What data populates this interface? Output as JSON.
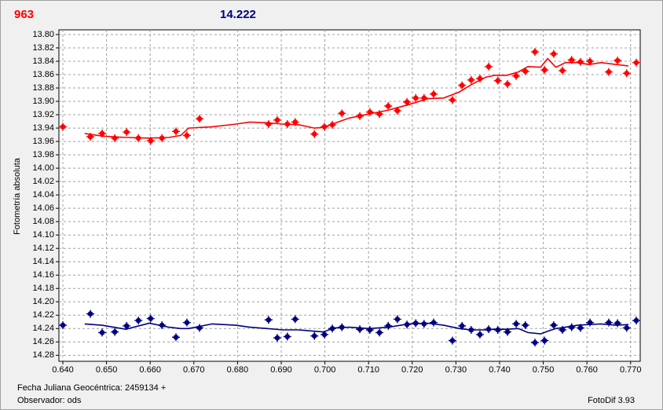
{
  "chart_data": {
    "type": "scatter",
    "y_label": "Fotometría absoluta",
    "footer_left_1": "Fecha Juliana Geocéntrica: 2459134 +",
    "footer_left_2": "Observador: ods",
    "footer_right": "FotoDif 3.93",
    "grid": true,
    "xlim": [
      0.6391,
      0.7722
    ],
    "ylim": [
      14.289,
      13.793
    ],
    "xticks": [
      {
        "value": 0.64,
        "label": "0.640"
      },
      {
        "value": 0.65,
        "label": "0.650"
      },
      {
        "value": 0.66,
        "label": "0.660"
      },
      {
        "value": 0.67,
        "label": "0.670"
      },
      {
        "value": 0.68,
        "label": "0.680"
      },
      {
        "value": 0.69,
        "label": "0.690"
      },
      {
        "value": 0.7,
        "label": "0.700"
      },
      {
        "value": 0.71,
        "label": "0.710"
      },
      {
        "value": 0.72,
        "label": "0.720"
      },
      {
        "value": 0.73,
        "label": "0.730"
      },
      {
        "value": 0.74,
        "label": "0.740"
      },
      {
        "value": 0.75,
        "label": "0.750"
      },
      {
        "value": 0.76,
        "label": "0.760"
      },
      {
        "value": 0.77,
        "label": "0.770"
      }
    ],
    "yticks": [
      {
        "value": 13.8,
        "label": "13.80"
      },
      {
        "value": 13.82,
        "label": "13.82"
      },
      {
        "value": 13.84,
        "label": "13.84"
      },
      {
        "value": 13.86,
        "label": "13.86"
      },
      {
        "value": 13.88,
        "label": "13.88"
      },
      {
        "value": 13.9,
        "label": "13.90"
      },
      {
        "value": 13.92,
        "label": "13.92"
      },
      {
        "value": 13.94,
        "label": "13.94"
      },
      {
        "value": 13.96,
        "label": "13.96"
      },
      {
        "value": 13.98,
        "label": "13.98"
      },
      {
        "value": 14.0,
        "label": "14.00"
      },
      {
        "value": 14.02,
        "label": "14.02"
      },
      {
        "value": 14.04,
        "label": "14.04"
      },
      {
        "value": 14.06,
        "label": "14.06"
      },
      {
        "value": 14.08,
        "label": "14.08"
      },
      {
        "value": 14.1,
        "label": "14.10"
      },
      {
        "value": 14.12,
        "label": "14.12"
      },
      {
        "value": 14.14,
        "label": "14.14"
      },
      {
        "value": 14.16,
        "label": "14.16"
      },
      {
        "value": 14.18,
        "label": "14.18"
      },
      {
        "value": 14.2,
        "label": "14.20"
      },
      {
        "value": 14.22,
        "label": "14.22"
      },
      {
        "value": 14.24,
        "label": "14.24"
      },
      {
        "value": 14.26,
        "label": "14.26"
      },
      {
        "value": 14.28,
        "label": "14.28"
      }
    ],
    "x": [
      0.64,
      0.6463,
      0.649,
      0.6519,
      0.6546,
      0.6573,
      0.6601,
      0.6627,
      0.6659,
      0.6684,
      0.6713,
      0.6871,
      0.6891,
      0.6914,
      0.6932,
      0.6976,
      0.6999,
      0.7017,
      0.7039,
      0.708,
      0.7103,
      0.7125,
      0.7145,
      0.7166,
      0.7188,
      0.7208,
      0.7227,
      0.7249,
      0.7292,
      0.7314,
      0.7335,
      0.7355,
      0.7375,
      0.7396,
      0.7418,
      0.7438,
      0.7459,
      0.7481,
      0.7503,
      0.7524,
      0.7544,
      0.7565,
      0.7585,
      0.7607,
      0.765,
      0.767,
      0.7691,
      0.7713
    ],
    "series": [
      {
        "name": "963",
        "color": "#ff0000",
        "values": [
          13.938,
          13.953,
          13.948,
          13.955,
          13.946,
          13.955,
          13.959,
          13.955,
          13.945,
          13.951,
          13.926,
          13.934,
          13.928,
          13.934,
          13.931,
          13.949,
          13.938,
          13.935,
          13.918,
          13.922,
          13.916,
          13.919,
          13.907,
          13.914,
          13.901,
          13.895,
          13.895,
          13.889,
          13.898,
          13.876,
          13.868,
          13.866,
          13.848,
          13.869,
          13.874,
          13.862,
          13.855,
          13.826,
          13.853,
          13.829,
          13.854,
          13.838,
          13.841,
          13.84,
          13.856,
          13.839,
          13.858,
          13.842
        ]
      },
      {
        "name": "14.222",
        "color": "#000080",
        "values": [
          14.235,
          14.218,
          14.246,
          14.245,
          14.236,
          14.228,
          14.225,
          14.235,
          14.253,
          14.231,
          14.239,
          14.227,
          14.254,
          14.252,
          14.226,
          14.251,
          14.249,
          14.24,
          14.238,
          14.241,
          14.242,
          14.246,
          14.236,
          14.226,
          14.234,
          14.232,
          14.233,
          14.231,
          14.258,
          14.236,
          14.242,
          14.249,
          14.241,
          14.242,
          14.245,
          14.233,
          14.235,
          14.261,
          14.258,
          14.235,
          14.242,
          14.238,
          14.239,
          14.231,
          14.231,
          14.232,
          14.239,
          14.228
        ]
      }
    ],
    "trend_x": [
      0.645,
      0.649,
      0.6544,
      0.6598,
      0.6643,
      0.667,
      0.6688,
      0.6742,
      0.6796,
      0.6828,
      0.6868,
      0.6904,
      0.694,
      0.6976,
      0.6997,
      0.7021,
      0.7056,
      0.7101,
      0.7146,
      0.7191,
      0.7236,
      0.7272,
      0.7308,
      0.7335,
      0.7368,
      0.7389,
      0.7416,
      0.7443,
      0.7465,
      0.7494,
      0.751,
      0.7529,
      0.7551,
      0.7578,
      0.7605,
      0.7632,
      0.7668,
      0.7695
    ],
    "trends": [
      {
        "color": "#ff0000",
        "values": [
          13.948,
          13.952,
          13.954,
          13.955,
          13.954,
          13.951,
          13.94,
          13.938,
          13.934,
          13.931,
          13.932,
          13.934,
          13.935,
          13.94,
          13.939,
          13.933,
          13.925,
          13.919,
          13.913,
          13.905,
          13.896,
          13.895,
          13.886,
          13.875,
          13.864,
          13.861,
          13.861,
          13.856,
          13.848,
          13.849,
          13.836,
          13.849,
          13.842,
          13.842,
          13.845,
          13.842,
          13.845,
          13.847
        ]
      },
      {
        "color": "#000080",
        "values": [
          14.233,
          14.235,
          14.241,
          14.232,
          14.238,
          14.24,
          14.24,
          14.233,
          14.235,
          14.238,
          14.24,
          14.242,
          14.242,
          14.244,
          14.245,
          14.239,
          14.238,
          14.24,
          14.238,
          14.233,
          14.232,
          14.235,
          14.24,
          14.242,
          14.242,
          14.241,
          14.241,
          14.24,
          14.246,
          14.248,
          14.244,
          14.24,
          14.238,
          14.235,
          14.234,
          14.233,
          14.235,
          14.234
        ]
      }
    ]
  }
}
